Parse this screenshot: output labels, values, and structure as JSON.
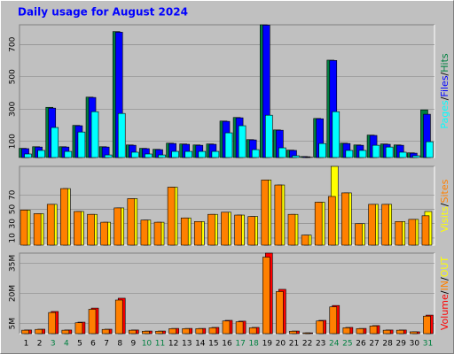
{
  "legend_separator": "/",
  "chart_data": [
    {
      "type": "bar",
      "title": "Daily usage for August 2024",
      "series": [
        {
          "name": "Pages",
          "color": "#00ffff",
          "values": [
            22,
            44,
            186,
            38,
            158,
            284,
            16,
            273,
            33,
            22,
            16,
            38,
            38,
            38,
            38,
            153,
            197,
            49,
            262,
            60,
            11,
            2,
            87,
            284,
            44,
            44,
            76,
            65,
            33,
            11,
            98
          ]
        },
        {
          "name": "Files",
          "color": "#0000ff",
          "values": [
            55,
            65,
            306,
            65,
            197,
            372,
            65,
            776,
            76,
            55,
            49,
            87,
            82,
            76,
            82,
            224,
            246,
            109,
            820,
            169,
            44,
            5,
            240,
            601,
            87,
            76,
            137,
            82,
            76,
            27,
            268
          ]
        },
        {
          "name": "Hits",
          "color": "#008040",
          "values": [
            57,
            67,
            311,
            67,
            199,
            374,
            67,
            780,
            78,
            57,
            51,
            89,
            84,
            78,
            84,
            226,
            248,
            111,
            822,
            171,
            46,
            6,
            242,
            603,
            89,
            78,
            139,
            84,
            78,
            29,
            295
          ]
        }
      ],
      "ylim": [
        0,
        822
      ],
      "yticks": [
        100,
        300,
        500,
        700
      ],
      "grid": true
    },
    {
      "type": "bar",
      "series": [
        {
          "name": "Visits",
          "color": "#ffff00",
          "values": [
            49,
            44,
            57,
            79,
            47,
            43,
            32,
            52,
            65,
            35,
            32,
            81,
            38,
            33,
            43,
            46,
            42,
            40,
            91,
            84,
            43,
            14,
            60,
            110,
            73,
            30,
            57,
            57,
            33,
            36,
            47
          ]
        },
        {
          "name": "Sites",
          "color": "#ff8000",
          "values": [
            49,
            44,
            57,
            79,
            47,
            43,
            32,
            52,
            65,
            35,
            32,
            81,
            38,
            33,
            43,
            46,
            42,
            40,
            91,
            84,
            43,
            14,
            60,
            68,
            73,
            30,
            57,
            57,
            33,
            36,
            41
          ]
        }
      ],
      "ylim": [
        0,
        110
      ],
      "yticks": [
        10,
        30,
        50,
        70
      ],
      "grid": true
    },
    {
      "type": "bar",
      "categories": [
        "1",
        "2",
        "3",
        "4",
        "5",
        "6",
        "7",
        "8",
        "9",
        "10",
        "11",
        "12",
        "13",
        "14",
        "15",
        "16",
        "17",
        "18",
        "19",
        "20",
        "21",
        "22",
        "23",
        "24",
        "25",
        "26",
        "27",
        "28",
        "29",
        "30",
        "31"
      ],
      "category_colors": [
        "#000000",
        "#000000",
        "#008040",
        "#008040",
        "#000000",
        "#000000",
        "#000000",
        "#000000",
        "#000000",
        "#008040",
        "#008040",
        "#000000",
        "#000000",
        "#000000",
        "#000000",
        "#000000",
        "#008040",
        "#008040",
        "#000000",
        "#000000",
        "#000000",
        "#000000",
        "#000000",
        "#008040",
        "#008040",
        "#000000",
        "#000000",
        "#000000",
        "#000000",
        "#000000",
        "#008040"
      ],
      "series": [
        {
          "name": "Volume",
          "color": "#ff0000",
          "values": [
            1800000,
            2200000,
            11000000,
            1800000,
            5700000,
            12700000,
            2200000,
            17600000,
            1800000,
            1300000,
            1300000,
            2600000,
            2600000,
            2600000,
            3100000,
            6600000,
            6200000,
            3100000,
            40000000,
            22000000,
            1300000,
            400000,
            6600000,
            14000000,
            3100000,
            2600000,
            4000000,
            1800000,
            1800000,
            900000,
            9200000
          ]
        },
        {
          "name": "IN",
          "color": "#ff8000",
          "values": [
            1700000,
            2100000,
            10500000,
            1700000,
            5400000,
            12100000,
            2100000,
            16700000,
            1700000,
            1200000,
            1200000,
            2500000,
            2500000,
            2500000,
            2900000,
            6300000,
            5900000,
            2900000,
            38000000,
            20900000,
            1200000,
            400000,
            6300000,
            13300000,
            2900000,
            2500000,
            3800000,
            1700000,
            1700000,
            900000,
            8700000
          ]
        },
        {
          "name": "OUT",
          "color": "#ffff00",
          "values": [
            0,
            0,
            0,
            0,
            0,
            0,
            0,
            0,
            0,
            0,
            0,
            0,
            0,
            0,
            0,
            0,
            0,
            0,
            0,
            0,
            0,
            0,
            0,
            0,
            0,
            0,
            0,
            0,
            0,
            0,
            0
          ]
        }
      ],
      "ylim": [
        0,
        40000000
      ],
      "yticks": [
        {
          "value": 5000000,
          "label": "5M"
        },
        {
          "value": 20000000,
          "label": "20M"
        },
        {
          "value": 35000000,
          "label": "35M"
        }
      ],
      "grid": true
    }
  ]
}
